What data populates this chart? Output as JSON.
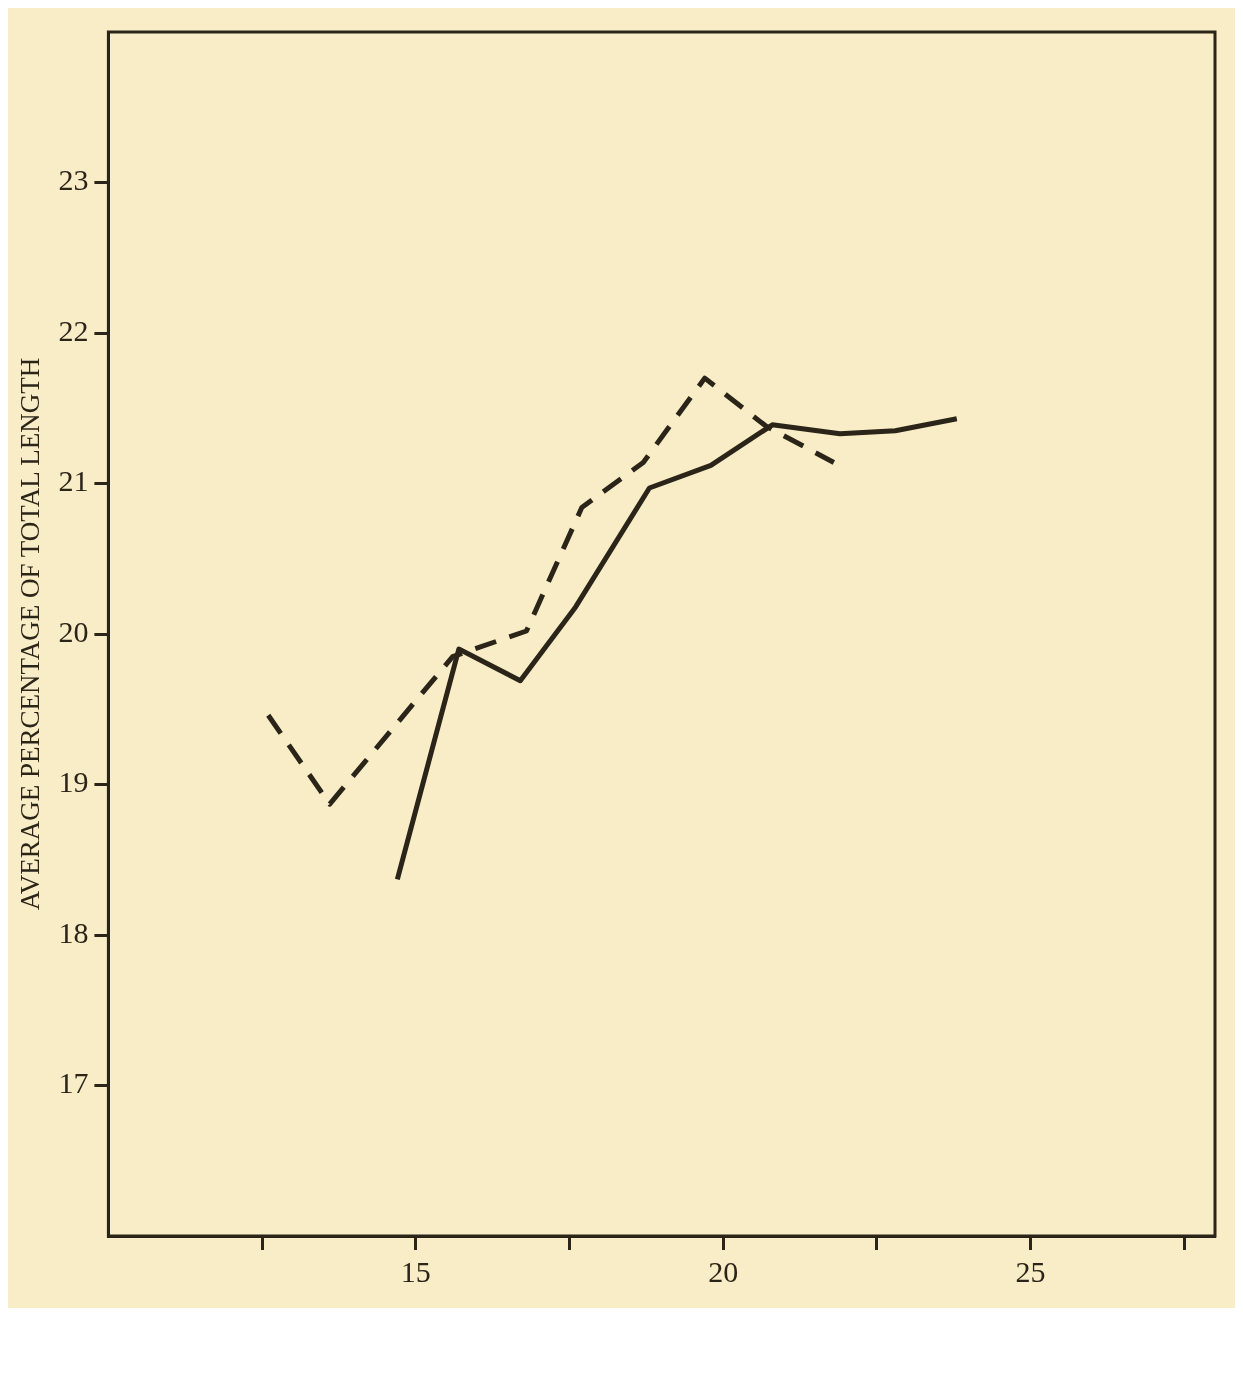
{
  "chart_data": {
    "type": "line",
    "ylabel": "AVERAGE PERCENTAGE OF TOTAL LENGTH",
    "marker": "none",
    "xlim": [
      10,
      28
    ],
    "xticks": [
      {
        "value": 12.5,
        "label": null
      },
      15,
      {
        "value": 17.5,
        "label": null
      },
      20,
      {
        "value": 22.5,
        "label": null
      },
      25,
      {
        "value": 27.5,
        "label": null
      }
    ],
    "ylim": [
      16,
      24
    ],
    "yticks": [
      17,
      18,
      19,
      20,
      21,
      22,
      23
    ],
    "series": [
      {
        "color": "#2b2418",
        "line_style": "solid",
        "x": [
          14.7,
          15.7,
          16.7,
          17.6,
          18.8,
          19.8,
          20.8,
          21.9,
          22.8,
          23.8
        ],
        "values": [
          18.37,
          19.9,
          19.69,
          20.18,
          20.97,
          21.12,
          21.39,
          21.33,
          21.35,
          21.43
        ]
      },
      {
        "color": "#2b2418",
        "line_style": "dashed",
        "x": [
          12.6,
          13.6,
          15.6,
          16.8,
          17.7,
          18.7,
          19.7,
          20.7,
          21.8
        ],
        "values": [
          19.46,
          18.87,
          19.85,
          20.02,
          20.84,
          21.14,
          21.7,
          21.38,
          21.14
        ]
      }
    ]
  }
}
